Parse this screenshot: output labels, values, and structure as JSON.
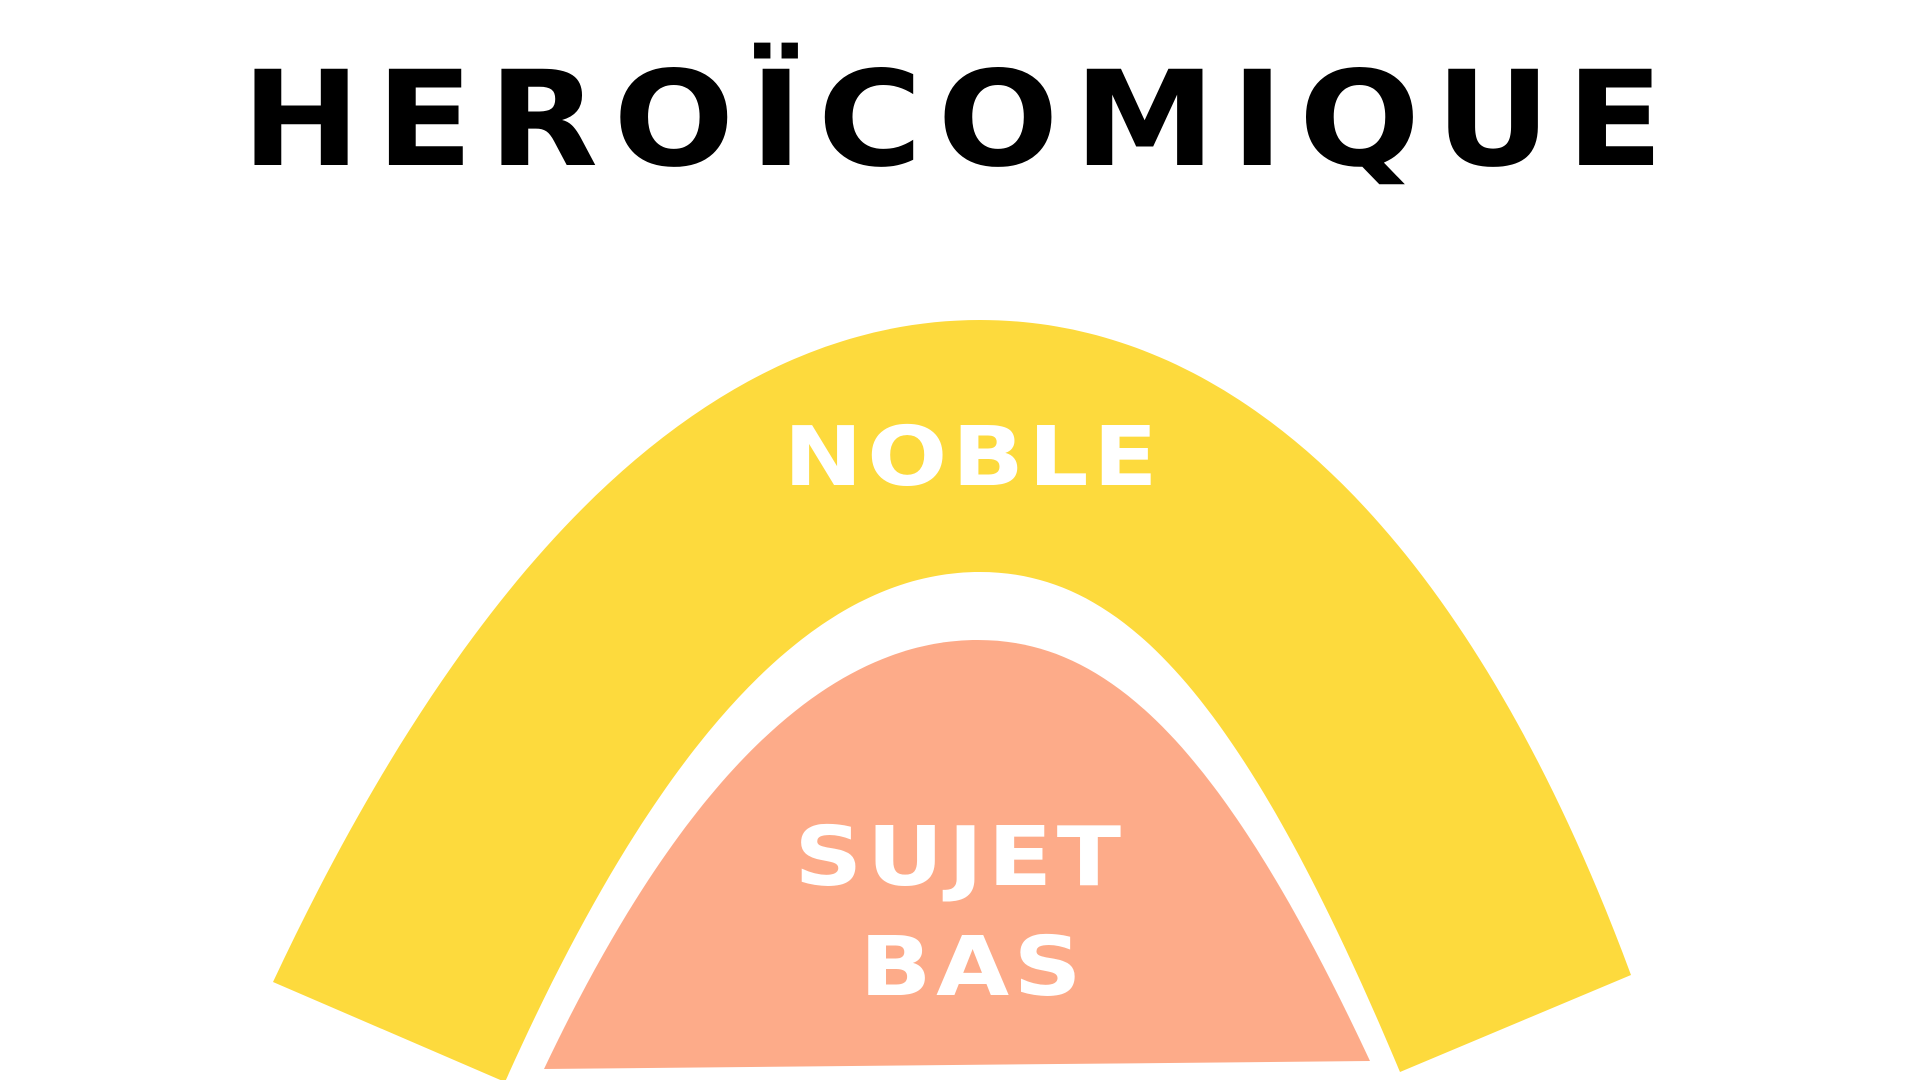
{
  "title": "HEROÏCOMIQUE",
  "outer_band": {
    "label": "NOBLE",
    "color": "#FDDA3D"
  },
  "inner_region": {
    "label_line1": "SUJET",
    "label_line2": "BAS",
    "color": "#FDAB89"
  },
  "text_color": "#FFFFFF",
  "title_color": "#000000"
}
